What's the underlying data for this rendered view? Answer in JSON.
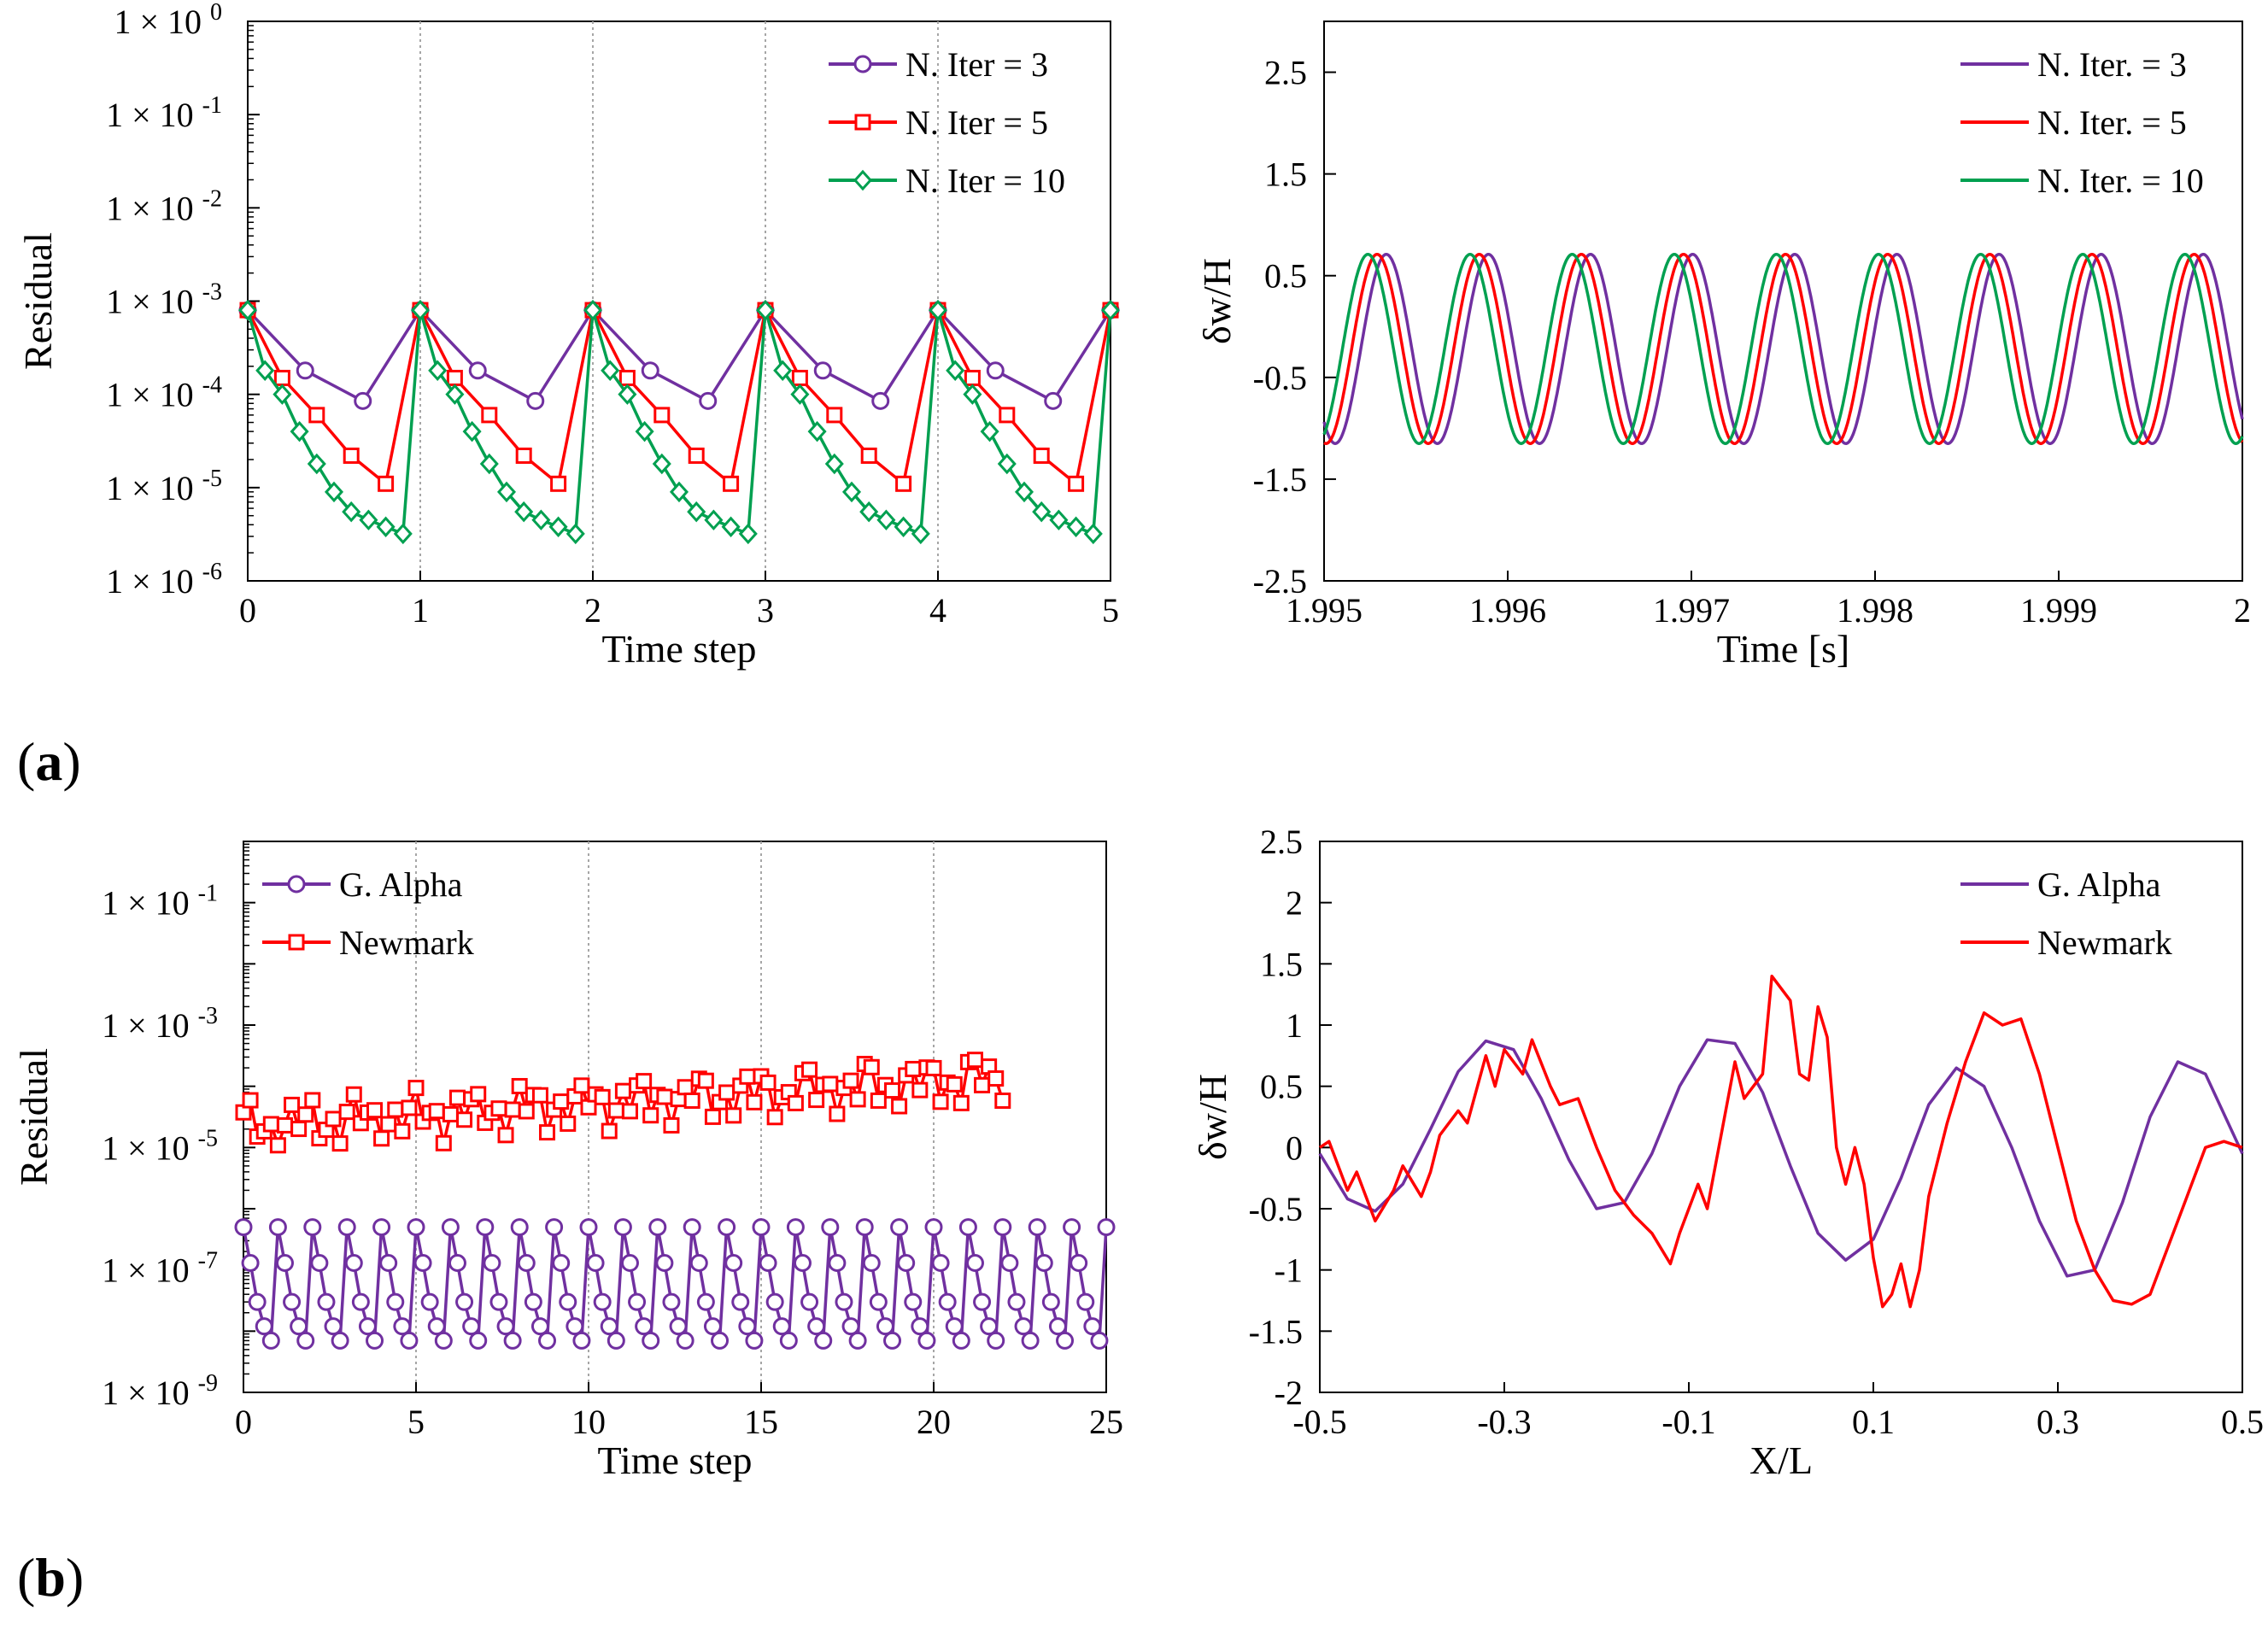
{
  "panel_labels": {
    "a": "a",
    "b": "b"
  },
  "colors": {
    "purple": "#7030A0",
    "red": "#FF0000",
    "green": "#00A050",
    "grid": "#A6A6A6",
    "axis": "#000000"
  },
  "chart_data": [
    {
      "id": "a-left",
      "type": "line",
      "yscale": "log",
      "xlabel": "Time step",
      "ylabel": "Residual",
      "xlim": [
        0,
        5
      ],
      "ylim_exp": [
        -6,
        0
      ],
      "xticks": [
        0,
        1,
        2,
        3,
        4,
        5
      ],
      "xtick_labels": [
        "0",
        "1",
        "2",
        "3",
        "4",
        "5"
      ],
      "ytick_exps": [
        -6,
        -5,
        -4,
        -3,
        -2,
        -1,
        0
      ],
      "ytick_labels": [
        {
          "base": "1 × 10",
          "exp": "-6"
        },
        {
          "base": "1 × 10",
          "exp": "-5"
        },
        {
          "base": "1 × 10",
          "exp": "-4"
        },
        {
          "base": "1 × 10",
          "exp": "-3"
        },
        {
          "base": "1 × 10",
          "exp": "-2"
        },
        {
          "base": "1 × 10",
          "exp": "-1"
        },
        {
          "base": "1 × 10",
          "exp": "0"
        }
      ],
      "vgrid": [
        1,
        2,
        3,
        4
      ],
      "legend_position": "top-right",
      "series": [
        {
          "name": "N. Iter = 3",
          "color": "purple",
          "marker": "circle",
          "x": [
            0,
            0.333,
            0.667,
            1,
            1.333,
            1.667,
            2,
            2.333,
            2.667,
            3,
            3.333,
            3.667,
            4,
            4.333,
            4.667,
            5
          ],
          "y": [
            0.0008,
            0.00018,
            8.5e-05,
            0.0008,
            0.00018,
            8.5e-05,
            0.0008,
            0.00018,
            8.5e-05,
            0.0008,
            0.00018,
            8.5e-05,
            0.0008,
            0.00018,
            8.5e-05,
            0.0008
          ]
        },
        {
          "name": "N. Iter = 5",
          "color": "red",
          "marker": "square",
          "x": [
            0,
            0.2,
            0.4,
            0.6,
            0.8,
            1,
            1.2,
            1.4,
            1.6,
            1.8,
            2,
            2.2,
            2.4,
            2.6,
            2.8,
            3,
            3.2,
            3.4,
            3.6,
            3.8,
            4,
            4.2,
            4.4,
            4.6,
            4.8,
            5
          ],
          "y": [
            0.0008,
            0.00015,
            6e-05,
            2.2e-05,
            1.1e-05,
            0.0008,
            0.00015,
            6e-05,
            2.2e-05,
            1.1e-05,
            0.0008,
            0.00015,
            6e-05,
            2.2e-05,
            1.1e-05,
            0.0008,
            0.00015,
            6e-05,
            2.2e-05,
            1.1e-05,
            0.0008,
            0.00015,
            6e-05,
            2.2e-05,
            1.1e-05,
            0.0008
          ]
        },
        {
          "name": "N. Iter = 10",
          "color": "green",
          "marker": "diamond",
          "x": [
            0,
            0.1,
            0.2,
            0.3,
            0.4,
            0.5,
            0.6,
            0.7,
            0.8,
            0.9,
            1,
            1.1,
            1.2,
            1.3,
            1.4,
            1.5,
            1.6,
            1.7,
            1.8,
            1.9,
            2,
            2.1,
            2.2,
            2.3,
            2.4,
            2.5,
            2.6,
            2.7,
            2.8,
            2.9,
            3,
            3.1,
            3.2,
            3.3,
            3.4,
            3.5,
            3.6,
            3.7,
            3.8,
            3.9,
            4,
            4.1,
            4.2,
            4.3,
            4.4,
            4.5,
            4.6,
            4.7,
            4.8,
            4.9,
            5
          ],
          "y": [
            0.0008,
            0.00018,
            0.0001,
            4e-05,
            1.8e-05,
            9e-06,
            5.5e-06,
            4.5e-06,
            3.8e-06,
            3.2e-06,
            0.0008,
            0.00018,
            0.0001,
            4e-05,
            1.8e-05,
            9e-06,
            5.5e-06,
            4.5e-06,
            3.8e-06,
            3.2e-06,
            0.0008,
            0.00018,
            0.0001,
            4e-05,
            1.8e-05,
            9e-06,
            5.5e-06,
            4.5e-06,
            3.8e-06,
            3.2e-06,
            0.0008,
            0.00018,
            0.0001,
            4e-05,
            1.8e-05,
            9e-06,
            5.5e-06,
            4.5e-06,
            3.8e-06,
            3.2e-06,
            0.0008,
            0.00018,
            0.0001,
            4e-05,
            1.8e-05,
            9e-06,
            5.5e-06,
            4.5e-06,
            3.8e-06,
            3.2e-06,
            0.0008
          ]
        }
      ]
    },
    {
      "id": "a-right",
      "type": "line",
      "xlabel": "Time [s]",
      "ylabel": "δw/H",
      "xlim": [
        1.995,
        2.0
      ],
      "ylim": [
        -2.5,
        3.0
      ],
      "xticks": [
        1.995,
        1.996,
        1.997,
        1.998,
        1.999,
        2.0
      ],
      "xtick_labels": [
        "1.995",
        "1.996",
        "1.997",
        "1.998",
        "1.999",
        "2"
      ],
      "yticks": [
        -2.5,
        -1.5,
        -0.5,
        0.5,
        1.5,
        2.5
      ],
      "ytick_labels": [
        "-2.5",
        "-1.5",
        "-0.5",
        "0.5",
        "1.5",
        "2.5"
      ],
      "legend_position": "top-right",
      "series": [
        {
          "name": "N. Iter. = 3",
          "color": "purple",
          "curve": {
            "kind": "sine",
            "amplitude": 0.93,
            "offset": -0.22,
            "period": 0.000556,
            "phase": 0.0002
          }
        },
        {
          "name": "N. Iter. = 5",
          "color": "red",
          "curve": {
            "kind": "sine",
            "amplitude": 0.93,
            "offset": -0.22,
            "period": 0.000556,
            "phase": 0.00015
          }
        },
        {
          "name": "N. Iter. = 10",
          "color": "green",
          "curve": {
            "kind": "sine",
            "amplitude": 0.93,
            "offset": -0.22,
            "period": 0.000556,
            "phase": 0.0001
          }
        }
      ]
    },
    {
      "id": "b-left",
      "type": "scatter",
      "yscale": "log",
      "xlabel": "Time step",
      "ylabel": "Residual",
      "xlim": [
        0,
        25
      ],
      "ylim_exp": [
        -9,
        0
      ],
      "xticks": [
        0,
        5,
        10,
        15,
        20,
        25
      ],
      "xtick_labels": [
        "0",
        "5",
        "10",
        "15",
        "20",
        "25"
      ],
      "ytick_exps": [
        -9,
        -7,
        -5,
        -3,
        -1
      ],
      "ytick_labels": [
        {
          "base": "1 × 10",
          "exp": "-9"
        },
        {
          "base": "1 × 10",
          "exp": "-7"
        },
        {
          "base": "1 × 10",
          "exp": "-5"
        },
        {
          "base": "1 × 10",
          "exp": "-3"
        },
        {
          "base": "1 × 10",
          "exp": "-1"
        }
      ],
      "vgrid": [
        5,
        10,
        15,
        20
      ],
      "legend_position": "top-left",
      "series": [
        {
          "name": "G. Alpha",
          "color": "purple",
          "marker": "circle",
          "pattern": "periodic",
          "step_values": [
            5e-07,
            1.3e-07,
            3e-08,
            1.2e-08,
            7e-09
          ],
          "steps": 25,
          "per_step": 5
        },
        {
          "name": "Newmark",
          "color": "red",
          "marker": "square",
          "pattern": "noisy",
          "steps": 22,
          "per_step": 5,
          "base_exp_start": -4.6,
          "base_exp_end": -3.8,
          "amp_exp": 0.45
        }
      ]
    },
    {
      "id": "b-right",
      "type": "line",
      "xlabel": "X/L",
      "ylabel": "δw/H",
      "xlim": [
        -0.5,
        0.5
      ],
      "ylim": [
        -2,
        2.5
      ],
      "xticks": [
        -0.5,
        -0.3,
        -0.1,
        0.1,
        0.3,
        0.5
      ],
      "xtick_labels": [
        "-0.5",
        "-0.3",
        "-0.1",
        "0.1",
        "0.3",
        "0.5"
      ],
      "yticks": [
        -2,
        -1.5,
        -1,
        -0.5,
        0,
        0.5,
        1,
        1.5,
        2,
        2.5
      ],
      "ytick_labels": [
        "-2",
        "-1.5",
        "-1",
        "-0.5",
        "0",
        "0.5",
        "1",
        "1.5",
        "2",
        "2.5"
      ],
      "legend_position": "top-right",
      "series": [
        {
          "name": "G. Alpha",
          "color": "purple",
          "x": [
            -0.5,
            -0.47,
            -0.44,
            -0.41,
            -0.38,
            -0.35,
            -0.32,
            -0.29,
            -0.26,
            -0.23,
            -0.2,
            -0.17,
            -0.14,
            -0.11,
            -0.08,
            -0.05,
            -0.02,
            0.01,
            0.04,
            0.07,
            0.1,
            0.13,
            0.16,
            0.19,
            0.22,
            0.25,
            0.28,
            0.31,
            0.34,
            0.37,
            0.4,
            0.43,
            0.46,
            0.5
          ],
          "y": [
            -0.05,
            -0.42,
            -0.52,
            -0.3,
            0.15,
            0.62,
            0.87,
            0.8,
            0.4,
            -0.1,
            -0.5,
            -0.45,
            -0.05,
            0.5,
            0.88,
            0.85,
            0.45,
            -0.15,
            -0.7,
            -0.92,
            -0.75,
            -0.25,
            0.35,
            0.65,
            0.5,
            0.0,
            -0.6,
            -1.05,
            -1.0,
            -0.45,
            0.25,
            0.7,
            0.6,
            -0.05
          ]
        },
        {
          "name": "Newmark",
          "color": "red",
          "x": [
            -0.5,
            -0.49,
            -0.47,
            -0.46,
            -0.44,
            -0.42,
            -0.41,
            -0.39,
            -0.38,
            -0.37,
            -0.35,
            -0.34,
            -0.32,
            -0.31,
            -0.3,
            -0.28,
            -0.27,
            -0.25,
            -0.24,
            -0.22,
            -0.2,
            -0.18,
            -0.16,
            -0.14,
            -0.12,
            -0.11,
            -0.09,
            -0.08,
            -0.06,
            -0.05,
            -0.04,
            -0.02,
            -0.01,
            0.01,
            0.02,
            0.03,
            0.04,
            0.05,
            0.06,
            0.07,
            0.08,
            0.09,
            0.1,
            0.11,
            0.12,
            0.13,
            0.14,
            0.15,
            0.16,
            0.18,
            0.2,
            0.22,
            0.24,
            0.26,
            0.28,
            0.3,
            0.32,
            0.34,
            0.36,
            0.38,
            0.4,
            0.42,
            0.44,
            0.46,
            0.48,
            0.5
          ],
          "y": [
            0.0,
            0.05,
            -0.35,
            -0.2,
            -0.6,
            -0.35,
            -0.15,
            -0.4,
            -0.2,
            0.1,
            0.3,
            0.2,
            0.75,
            0.5,
            0.8,
            0.6,
            0.88,
            0.5,
            0.35,
            0.4,
            0.0,
            -0.35,
            -0.55,
            -0.7,
            -0.95,
            -0.7,
            -0.3,
            -0.5,
            0.3,
            0.7,
            0.4,
            0.6,
            1.4,
            1.2,
            0.6,
            0.55,
            1.15,
            0.9,
            0.0,
            -0.3,
            0.0,
            -0.3,
            -0.9,
            -1.3,
            -1.2,
            -0.95,
            -1.3,
            -1.0,
            -0.4,
            0.2,
            0.7,
            1.1,
            1.0,
            1.05,
            0.6,
            0.0,
            -0.6,
            -1.0,
            -1.25,
            -1.28,
            -1.2,
            -0.8,
            -0.4,
            0.0,
            0.05,
            0.0
          ]
        }
      ]
    }
  ]
}
